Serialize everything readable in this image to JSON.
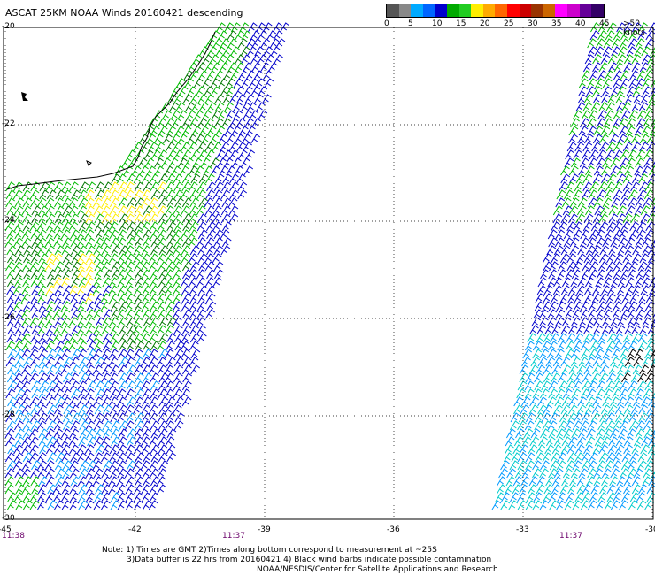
{
  "title": "ASCAT 25KM NOAA Winds 20160421 descending",
  "legend": {
    "labels": [
      "0",
      "5",
      "10",
      "15",
      "20",
      "25",
      "30",
      "35",
      "40",
      "45",
      ">50 knots"
    ],
    "colors": [
      "#555555",
      "#888888",
      "#00aaff",
      "#0066ff",
      "#0000cc",
      "#00aa00",
      "#22cc22",
      "#ffee00",
      "#ffaa00",
      "#ff6600",
      "#ff0000",
      "#cc0000",
      "#993300",
      "#cc6600",
      "#ff00ff",
      "#cc00cc",
      "#660099",
      "#330066"
    ]
  },
  "axes": {
    "y_labels": [
      "-20",
      "-22",
      "-24",
      "-26",
      "-28",
      "-30"
    ],
    "x_labels": [
      "-45",
      "-42",
      "-39",
      "-36",
      "-33",
      "-30"
    ],
    "time_labels": [
      "11:38",
      "11:37",
      "11:37"
    ]
  },
  "notes": [
    "Note: 1) Times are GMT 2)Times along bottom correspond to measurement at ~25S",
    "3)Data buffer is 22 hrs from 20160421 4) Black wind barbs indicate possible contamination",
    "NOAA/NESDIS/Center for Satellite Applications and Research"
  ],
  "barb_colors": {
    "blue": "#0000cc",
    "light_blue": "#0099ff",
    "cyan": "#00cccc",
    "green": "#00bb00",
    "dark_green": "#007700",
    "yellow": "#ffee00",
    "black": "#000000"
  }
}
